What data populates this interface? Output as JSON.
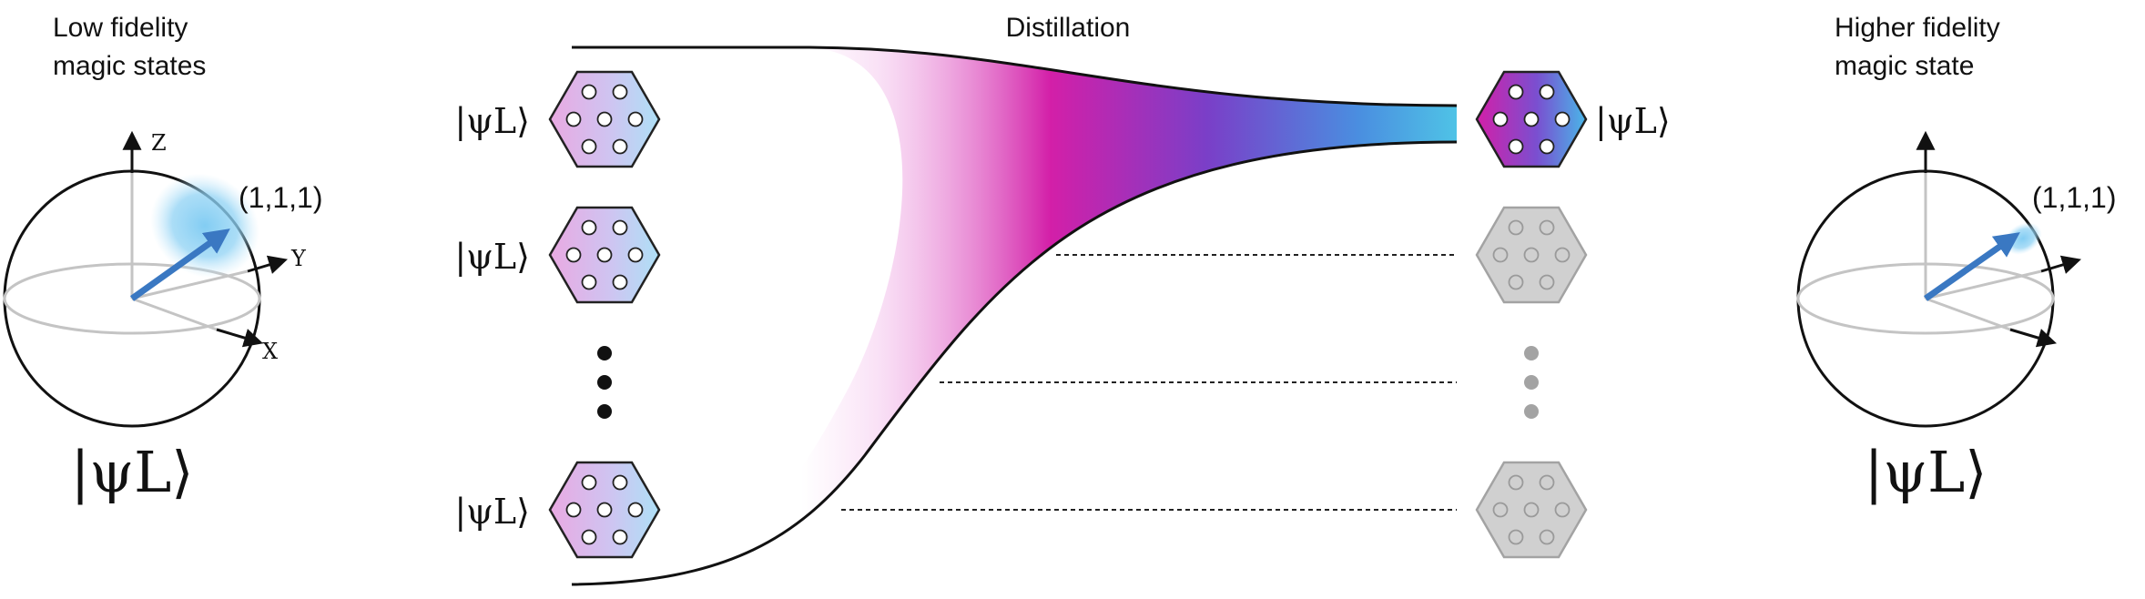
{
  "headings": {
    "left": [
      "Low fidelity",
      "magic states"
    ],
    "center": "Distillation",
    "right": [
      "Higher fidelity",
      "magic state"
    ]
  },
  "left_sphere": {
    "axis_z": "Z",
    "axis_y": "Y",
    "axis_x": "X",
    "point_label": "(1,1,1)",
    "state_label": "|ψL⟩"
  },
  "right_sphere": {
    "point_label": "(1,1,1)",
    "state_label": "|ψL⟩"
  },
  "inputs": {
    "state_label": "|ψL⟩",
    "count_shown": 3,
    "ellipsis": true
  },
  "outputs": {
    "state_label": "|ψL⟩",
    "kept": 1,
    "discarded": 2
  },
  "colors": {
    "magenta": "#d31fa8",
    "purple": "#7a3fc8",
    "cyan": "#4fc3e6",
    "light_pink": "#f3b6ea",
    "light_cyan": "#b3e4f6",
    "gray_hex": "#d0d0d0",
    "arrow_blue": "#3a78c2"
  }
}
